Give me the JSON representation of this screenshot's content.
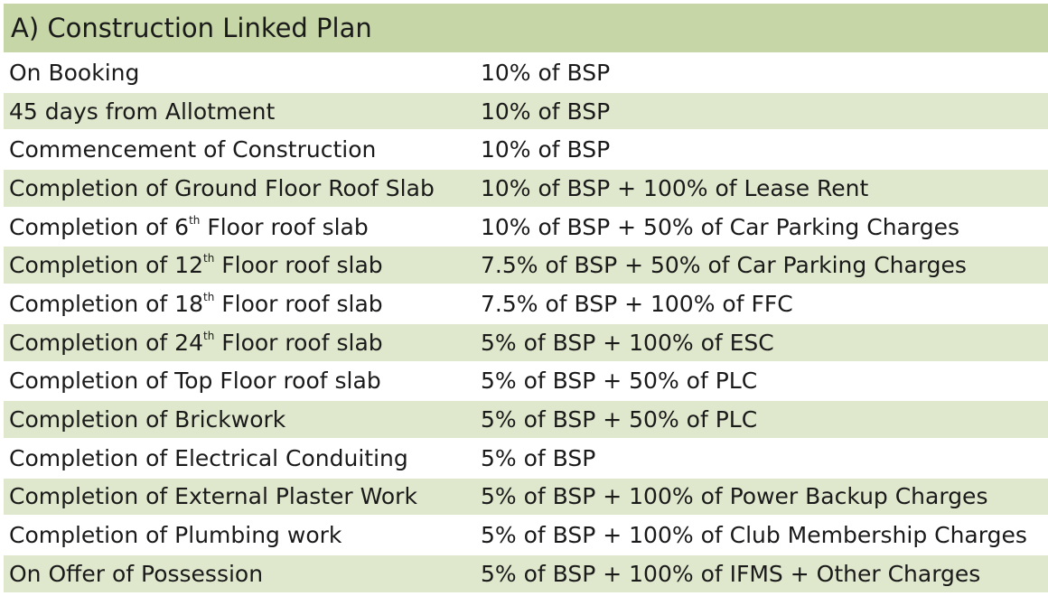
{
  "table": {
    "title": "A) Construction Linked Plan",
    "rows": [
      [
        {
          "text": "On Booking"
        },
        {
          "text": "10% of BSP"
        }
      ],
      [
        {
          "text": "45 days from Allotment"
        },
        {
          "text": "10% of BSP"
        }
      ],
      [
        {
          "text": "Commencement of Construction"
        },
        {
          "text": "10% of BSP"
        }
      ],
      [
        {
          "text": "Completion of Ground Floor Roof Slab"
        },
        {
          "text": "10% of BSP + 100% of Lease Rent"
        }
      ],
      [
        {
          "text": "Completion of 6",
          "sup": "th",
          "after": " Floor roof slab"
        },
        {
          "text": "10% of BSP + 50% of Car Parking Charges"
        }
      ],
      [
        {
          "text": "Completion of 12",
          "sup": "th",
          "after": " Floor roof slab"
        },
        {
          "text": "7.5% of BSP + 50% of Car Parking Charges"
        }
      ],
      [
        {
          "text": "Completion of 18",
          "sup": "th",
          "after": " Floor roof slab"
        },
        {
          "text": "7.5% of BSP + 100% of FFC"
        }
      ],
      [
        {
          "text": "Completion of 24",
          "sup": "th",
          "after": " Floor roof slab"
        },
        {
          "text": "5% of BSP + 100% of ESC"
        }
      ],
      [
        {
          "text": "Completion of Top Floor roof slab"
        },
        {
          "text": "5% of BSP + 50% of PLC"
        }
      ],
      [
        {
          "text": "Completion of Brickwork"
        },
        {
          "text": "5% of BSP + 50% of PLC"
        }
      ],
      [
        {
          "text": "Completion of Electrical Conduiting"
        },
        {
          "text": "5% of BSP"
        }
      ],
      [
        {
          "text": "Completion of External Plaster Work"
        },
        {
          "text": "5% of BSP + 100% of Power Backup Charges"
        }
      ],
      [
        {
          "text": "Completion of Plumbing work"
        },
        {
          "text": "5% of BSP + 100% of Club Membership Charges"
        }
      ],
      [
        {
          "text": "On Offer of Possession"
        },
        {
          "text": "5% of BSP + 100% of IFMS + Other Charges"
        }
      ]
    ]
  }
}
